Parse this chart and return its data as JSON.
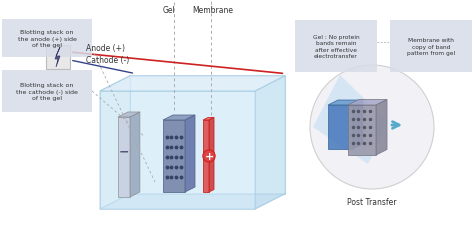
{
  "bg_color": "#ffffff",
  "box_color": "#d6dce8",
  "tank_color": "#cde8f5",
  "tank_border": "#a0c8e0",
  "gel_color": "#8899bb",
  "membrane_color": "#e8e8ec",
  "electrode_color": "#c0c8d8",
  "anode_line": "#cc2222",
  "cathode_line": "#444488",
  "label_color": "#333333",
  "dashed_color": "#aaaaaa",
  "circle_color": "#e8e8ee",
  "arrow_color": "#55aacc",
  "title_text": "",
  "anode_label": "Anode (+)",
  "cathode_label": "Cathode (-)",
  "gel_label": "Gel",
  "membrane_label": "Membrane",
  "post_transfer_label": "Post Transfer",
  "box1_text": "Blotting stack on\nthe cathode (-) side\nof the gel",
  "box2_text": "Blotting stack on\nthe anode (+) side\nof the gel",
  "box3_text": "Gel : No protein\nbands remain\nafter effective\nelectrotransfer",
  "box4_text": "Membrane with\ncopy of band\npattern from gel"
}
